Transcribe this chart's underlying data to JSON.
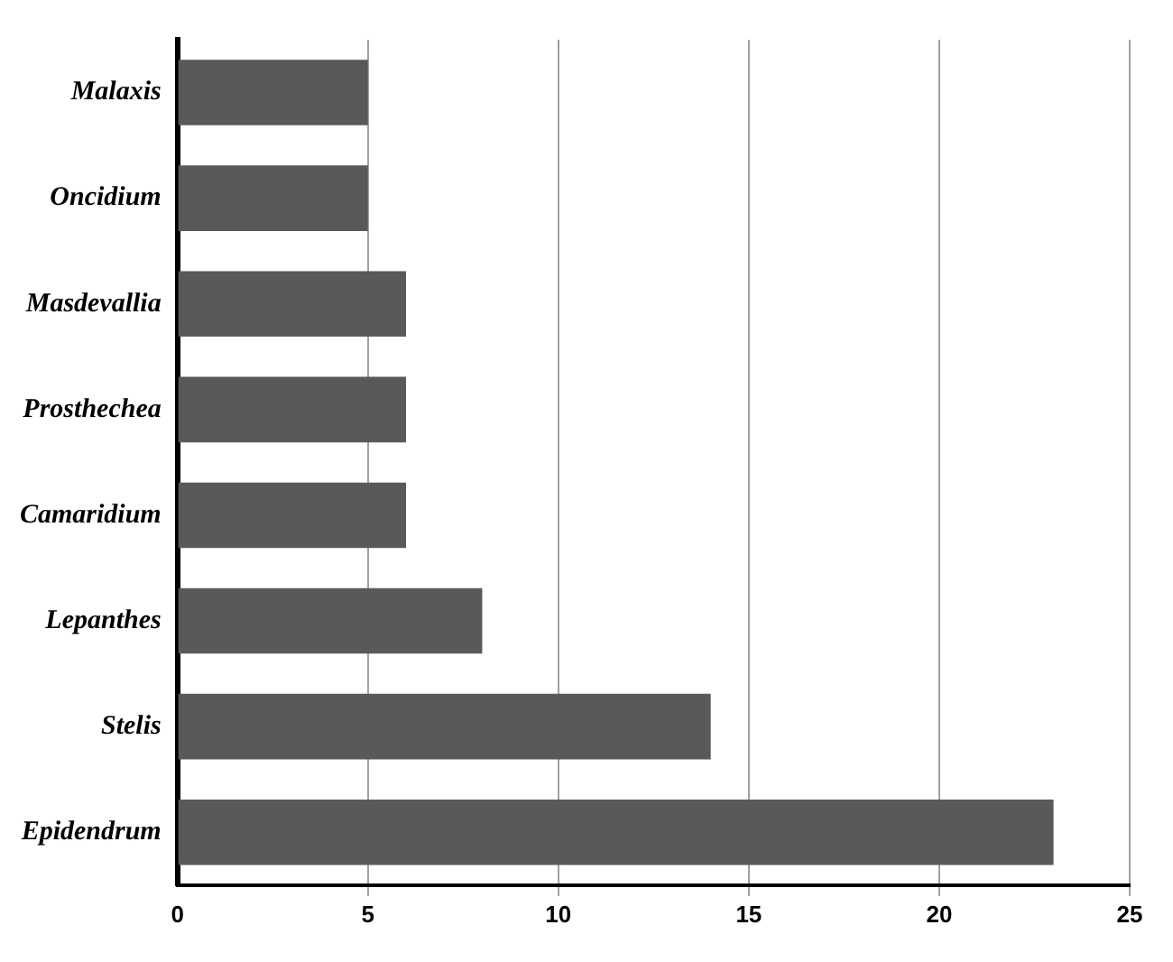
{
  "chart_data": {
    "type": "bar",
    "orientation": "horizontal",
    "categories": [
      "Malaxis",
      "Oncidium",
      "Masdevallia",
      "Prosthechea",
      "Camaridium",
      "Lepanthes",
      "Stelis",
      "Epidendrum"
    ],
    "values": [
      5,
      5,
      6,
      6,
      6,
      8,
      14,
      23
    ],
    "color": "#595959",
    "xlim": [
      0,
      25
    ],
    "xticks": [
      0,
      5,
      10,
      15,
      20,
      25
    ],
    "grid": "x",
    "legend": false
  }
}
